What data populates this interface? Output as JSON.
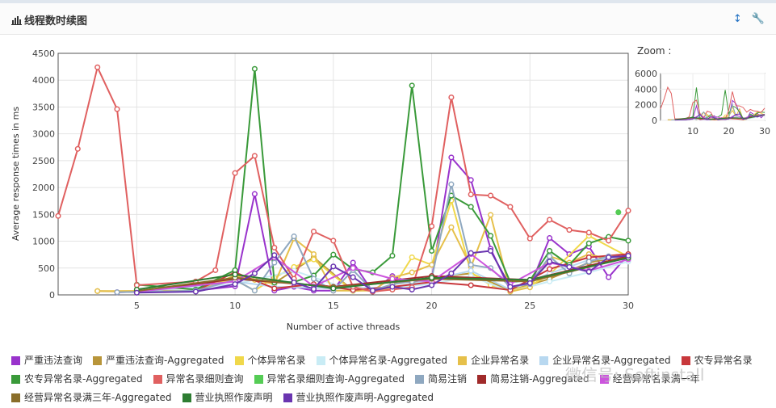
{
  "header": {
    "title": "线程数时续图",
    "chart_icon": "bar-chart-icon",
    "sort_icon": "sort-arrows-icon",
    "settings_icon": "wrench-icon"
  },
  "zoom": {
    "label": "Zoom :"
  },
  "watermark": "微信号: Softinstall",
  "chart_data": {
    "type": "line",
    "title": "",
    "xlabel": "Number of active threads",
    "ylabel": "Average response times in ms",
    "xlim": [
      1,
      30
    ],
    "ylim": [
      0,
      4500
    ],
    "xticks": [
      5,
      10,
      15,
      20,
      25,
      30
    ],
    "yticks": [
      0,
      500,
      1000,
      1500,
      2000,
      2500,
      3000,
      3500,
      4000,
      4500
    ],
    "grid": true,
    "legend_position": "bottom",
    "zoom_chart": {
      "ylim": [
        0,
        6000
      ],
      "yticks": [
        0,
        2000,
        4000,
        6000
      ],
      "xticks": [
        10,
        20,
        30
      ]
    },
    "series": [
      {
        "name": "严重违法查询",
        "color": "#9933cc",
        "points": [
          [
            4,
            50
          ],
          [
            8,
            80
          ],
          [
            10,
            160
          ],
          [
            11,
            1880
          ],
          [
            12,
            80
          ],
          [
            13,
            150
          ],
          [
            14,
            80
          ],
          [
            15,
            80
          ],
          [
            16,
            600
          ],
          [
            17,
            60
          ],
          [
            18,
            350
          ],
          [
            19,
            220
          ],
          [
            20,
            300
          ],
          [
            21,
            2560
          ],
          [
            22,
            2140
          ],
          [
            23,
            860
          ],
          [
            24,
            80
          ],
          [
            25,
            150
          ],
          [
            26,
            1060
          ],
          [
            27,
            760
          ],
          [
            28,
            900
          ],
          [
            29,
            330
          ],
          [
            30,
            750
          ]
        ]
      },
      {
        "name": "严重违法查询-Aggregated",
        "color": "#b8953a",
        "points": [
          [
            3,
            70
          ],
          [
            5,
            60
          ],
          [
            8,
            80
          ],
          [
            10,
            350
          ],
          [
            12,
            220
          ],
          [
            14,
            700
          ],
          [
            16,
            80
          ],
          [
            18,
            100
          ],
          [
            20,
            320
          ],
          [
            22,
            400
          ],
          [
            24,
            80
          ],
          [
            26,
            300
          ],
          [
            28,
            600
          ],
          [
            30,
            740
          ]
        ]
      },
      {
        "name": "个体异常名录",
        "color": "#f0d84a",
        "points": [
          [
            5,
            60
          ],
          [
            10,
            280
          ],
          [
            11,
            80
          ],
          [
            12,
            320
          ],
          [
            13,
            520
          ],
          [
            14,
            660
          ],
          [
            16,
            70
          ],
          [
            18,
            120
          ],
          [
            19,
            700
          ],
          [
            20,
            560
          ],
          [
            21,
            1760
          ],
          [
            22,
            420
          ],
          [
            23,
            180
          ],
          [
            24,
            80
          ],
          [
            25,
            170
          ],
          [
            26,
            380
          ],
          [
            28,
            1100
          ],
          [
            30,
            710
          ]
        ]
      },
      {
        "name": "个体异常名录-Aggregated",
        "color": "#c9ecf5",
        "points": [
          [
            5,
            50
          ],
          [
            10,
            200
          ],
          [
            13,
            450
          ],
          [
            16,
            80
          ],
          [
            20,
            200
          ],
          [
            22,
            350
          ],
          [
            24,
            60
          ],
          [
            26,
            250
          ],
          [
            28,
            420
          ],
          [
            30,
            620
          ]
        ]
      },
      {
        "name": "企业异常名录",
        "color": "#e6c04a",
        "points": [
          [
            3,
            70
          ],
          [
            8,
            80
          ],
          [
            10,
            360
          ],
          [
            11,
            280
          ],
          [
            12,
            200
          ],
          [
            13,
            1050
          ],
          [
            14,
            760
          ],
          [
            15,
            80
          ],
          [
            17,
            80
          ],
          [
            18,
            320
          ],
          [
            19,
            420
          ],
          [
            20,
            560
          ],
          [
            21,
            1260
          ],
          [
            22,
            520
          ],
          [
            23,
            1490
          ],
          [
            24,
            60
          ],
          [
            25,
            140
          ],
          [
            26,
            720
          ],
          [
            27,
            600
          ],
          [
            28,
            760
          ],
          [
            29,
            660
          ],
          [
            30,
            700
          ]
        ]
      },
      {
        "name": "企业异常名录-Aggregated",
        "color": "#b8d8f0",
        "points": [
          [
            5,
            50
          ],
          [
            10,
            250
          ],
          [
            12,
            150
          ],
          [
            15,
            120
          ],
          [
            18,
            140
          ],
          [
            20,
            280
          ],
          [
            22,
            450
          ],
          [
            24,
            100
          ],
          [
            26,
            400
          ],
          [
            28,
            650
          ],
          [
            30,
            700
          ]
        ]
      },
      {
        "name": "农专异常名录",
        "color": "#c8383c",
        "points": [
          [
            8,
            80
          ],
          [
            10,
            420
          ],
          [
            12,
            120
          ],
          [
            14,
            200
          ],
          [
            16,
            90
          ],
          [
            18,
            150
          ],
          [
            20,
            240
          ],
          [
            22,
            180
          ],
          [
            24,
            90
          ],
          [
            26,
            480
          ],
          [
            28,
            700
          ],
          [
            30,
            760
          ]
        ]
      },
      {
        "name": "农专异常名录-Aggregated",
        "color": "#3a9a3a",
        "points": [
          [
            5,
            190
          ],
          [
            8,
            100
          ],
          [
            10,
            460
          ],
          [
            11,
            4210
          ],
          [
            12,
            230
          ],
          [
            13,
            240
          ],
          [
            14,
            360
          ],
          [
            15,
            750
          ],
          [
            16,
            480
          ],
          [
            17,
            420
          ],
          [
            18,
            730
          ],
          [
            19,
            3900
          ],
          [
            20,
            820
          ],
          [
            21,
            1850
          ],
          [
            22,
            1640
          ],
          [
            23,
            1100
          ],
          [
            24,
            240
          ],
          [
            25,
            270
          ],
          [
            26,
            820
          ],
          [
            27,
            560
          ],
          [
            28,
            960
          ],
          [
            29,
            1080
          ],
          [
            30,
            1010
          ]
        ]
      },
      {
        "name": "异常名录细则查询",
        "color": "#e06060",
        "points": [
          [
            1,
            1470
          ],
          [
            2,
            2720
          ],
          [
            3,
            4240
          ],
          [
            4,
            3460
          ],
          [
            5,
            180
          ],
          [
            8,
            250
          ],
          [
            9,
            460
          ],
          [
            10,
            2270
          ],
          [
            11,
            2590
          ],
          [
            12,
            880
          ],
          [
            13,
            300
          ],
          [
            14,
            1180
          ],
          [
            15,
            1010
          ],
          [
            16,
            150
          ],
          [
            17,
            60
          ],
          [
            18,
            100
          ],
          [
            19,
            140
          ],
          [
            20,
            1280
          ],
          [
            21,
            3680
          ],
          [
            22,
            1870
          ],
          [
            23,
            1850
          ],
          [
            24,
            1640
          ],
          [
            25,
            1050
          ],
          [
            26,
            1400
          ],
          [
            27,
            1210
          ],
          [
            28,
            1160
          ],
          [
            29,
            1010
          ],
          [
            30,
            1570
          ]
        ]
      },
      {
        "name": "异常名录细则查询-Aggregated",
        "color": "#55cc55",
        "points": [
          [
            29.5,
            1540
          ]
        ]
      },
      {
        "name": "简易注销",
        "color": "#8fa8c0",
        "points": [
          [
            4,
            50
          ],
          [
            8,
            80
          ],
          [
            10,
            280
          ],
          [
            11,
            80
          ],
          [
            12,
            600
          ],
          [
            13,
            1090
          ],
          [
            14,
            300
          ],
          [
            15,
            80
          ],
          [
            16,
            460
          ],
          [
            17,
            80
          ],
          [
            18,
            200
          ],
          [
            19,
            250
          ],
          [
            20,
            300
          ],
          [
            21,
            2060
          ],
          [
            22,
            560
          ],
          [
            23,
            500
          ],
          [
            24,
            150
          ],
          [
            25,
            200
          ],
          [
            26,
            720
          ],
          [
            27,
            400
          ],
          [
            28,
            620
          ],
          [
            29,
            720
          ],
          [
            30,
            700
          ]
        ]
      },
      {
        "name": "简易注销-Aggregated",
        "color": "#a02a2a",
        "points": [
          [
            5,
            60
          ],
          [
            10,
            300
          ],
          [
            15,
            150
          ],
          [
            20,
            350
          ],
          [
            25,
            280
          ],
          [
            30,
            720
          ]
        ]
      },
      {
        "name": "经营异常名录满一年",
        "color": "#cc55dd",
        "points": [
          [
            5,
            60
          ],
          [
            10,
            250
          ],
          [
            12,
            700
          ],
          [
            14,
            160
          ],
          [
            16,
            500
          ],
          [
            18,
            300
          ],
          [
            20,
            250
          ],
          [
            22,
            760
          ],
          [
            24,
            200
          ],
          [
            26,
            600
          ],
          [
            28,
            450
          ],
          [
            30,
            660
          ]
        ]
      },
      {
        "name": "经营异常名录满三年-Aggregated",
        "color": "#8a6e2a",
        "points": [
          [
            5,
            70
          ],
          [
            10,
            320
          ],
          [
            15,
            140
          ],
          [
            20,
            300
          ],
          [
            25,
            250
          ],
          [
            30,
            700
          ]
        ]
      },
      {
        "name": "营业执照作废声明",
        "color": "#2e7d32",
        "points": [
          [
            5,
            100
          ],
          [
            10,
            380
          ],
          [
            15,
            120
          ],
          [
            20,
            320
          ],
          [
            25,
            280
          ],
          [
            30,
            690
          ]
        ]
      },
      {
        "name": "营业执照作废声明-Aggregated",
        "color": "#6a35b0",
        "points": [
          [
            5,
            40
          ],
          [
            8,
            60
          ],
          [
            10,
            200
          ],
          [
            11,
            400
          ],
          [
            12,
            740
          ],
          [
            13,
            230
          ],
          [
            14,
            110
          ],
          [
            15,
            530
          ],
          [
            16,
            330
          ],
          [
            17,
            80
          ],
          [
            18,
            150
          ],
          [
            19,
            100
          ],
          [
            20,
            180
          ],
          [
            21,
            400
          ],
          [
            22,
            780
          ],
          [
            23,
            820
          ],
          [
            24,
            150
          ],
          [
            25,
            220
          ],
          [
            26,
            620
          ],
          [
            27,
            520
          ],
          [
            28,
            430
          ],
          [
            29,
            700
          ],
          [
            30,
            730
          ]
        ]
      }
    ]
  }
}
